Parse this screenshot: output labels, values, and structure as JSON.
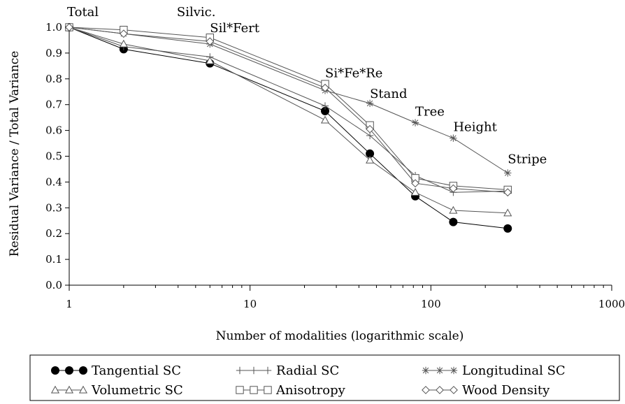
{
  "chart_data": {
    "type": "line",
    "xscale": "log",
    "xlabel": "Number of modalities (logarithmic scale)",
    "ylabel": "Residual Variance / Total Variance",
    "xlim": [
      1,
      1000
    ],
    "ylim": [
      0,
      1
    ],
    "xticks": [
      {
        "value": 1,
        "label": "1"
      },
      {
        "value": 10,
        "label": "10"
      },
      {
        "value": 100,
        "label": "100"
      },
      {
        "value": 1000,
        "label": "1000"
      }
    ],
    "yticks": [
      {
        "value": 0.0,
        "label": "0.0"
      },
      {
        "value": 0.1,
        "label": "0.1"
      },
      {
        "value": 0.2,
        "label": "0.2"
      },
      {
        "value": 0.3,
        "label": "0.3"
      },
      {
        "value": 0.4,
        "label": "0.4"
      },
      {
        "value": 0.5,
        "label": "0.5"
      },
      {
        "value": 0.6,
        "label": "0.6"
      },
      {
        "value": 0.7,
        "label": "0.7"
      },
      {
        "value": 0.8,
        "label": "0.8"
      },
      {
        "value": 0.9,
        "label": "0.9"
      },
      {
        "value": 1.0,
        "label": "1.0"
      }
    ],
    "annotations": [
      {
        "text": "Total",
        "x": 1,
        "y": 1.0
      },
      {
        "text": "Silvic.",
        "x": 2,
        "y": 1.0
      },
      {
        "text": "Sil*Fert",
        "x": 6,
        "y": 0.97
      },
      {
        "text": "Si*Fe*Re",
        "x": 26,
        "y": 0.79
      },
      {
        "text": "Stand",
        "x": 46,
        "y": 0.71
      },
      {
        "text": "Tree",
        "x": 82,
        "y": 0.63
      },
      {
        "text": "Height",
        "x": 133,
        "y": 0.57
      },
      {
        "text": "Stripe",
        "x": 266,
        "y": 0.44
      }
    ],
    "x": [
      1,
      2,
      6,
      26,
      46,
      82,
      133,
      266
    ],
    "series": [
      {
        "name": "Tangential SC",
        "marker": "dot",
        "values": [
          1.0,
          0.915,
          0.86,
          0.675,
          0.51,
          0.345,
          0.245,
          0.22
        ]
      },
      {
        "name": "Radial SC",
        "marker": "plus",
        "values": [
          1.0,
          0.925,
          0.885,
          0.695,
          0.58,
          0.425,
          0.36,
          0.365
        ]
      },
      {
        "name": "Longitudinal SC",
        "marker": "star",
        "values": [
          1.0,
          0.975,
          0.935,
          0.755,
          0.705,
          0.63,
          0.57,
          0.435
        ]
      },
      {
        "name": "Volumetric SC",
        "marker": "triangle",
        "values": [
          1.0,
          0.935,
          0.87,
          0.64,
          0.485,
          0.36,
          0.29,
          0.28
        ]
      },
      {
        "name": "Anisotropy",
        "marker": "square",
        "values": [
          1.0,
          0.99,
          0.96,
          0.78,
          0.62,
          0.415,
          0.385,
          0.37
        ]
      },
      {
        "name": "Wood Density",
        "marker": "diamond",
        "values": [
          1.0,
          0.975,
          0.945,
          0.765,
          0.605,
          0.395,
          0.375,
          0.36
        ]
      }
    ],
    "grid": false,
    "legend_position": "bottom"
  }
}
